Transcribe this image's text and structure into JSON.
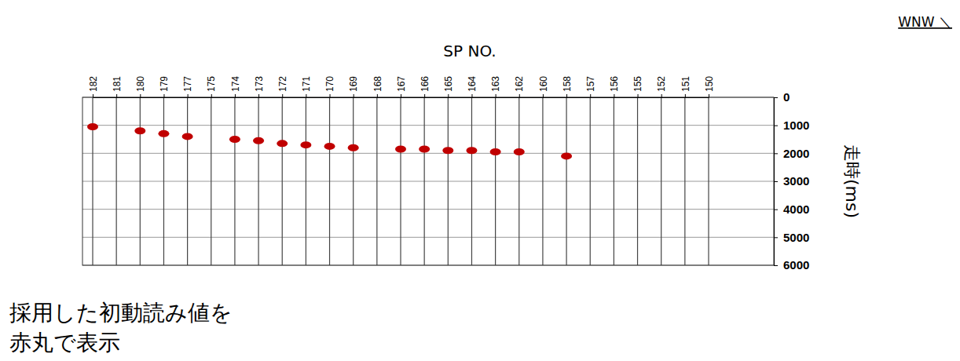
{
  "chart_data": {
    "type": "scatter",
    "x_label": "SP NO.",
    "y_label": "走時(ms)",
    "annotations": [
      "WNW ＼",
      "採用した初動読み値を",
      "赤丸で表示"
    ],
    "categories": [
      182,
      181,
      180,
      179,
      177,
      175,
      174,
      173,
      172,
      171,
      170,
      169,
      168,
      167,
      166,
      165,
      164,
      163,
      162,
      160,
      158,
      157,
      156,
      155,
      152,
      151,
      150
    ],
    "values": [
      1050,
      null,
      1200,
      1300,
      1400,
      null,
      1500,
      1550,
      1650,
      1700,
      1750,
      1800,
      null,
      1850,
      1850,
      1900,
      1900,
      1950,
      1950,
      null,
      2100,
      null,
      null,
      null,
      null,
      null,
      null
    ],
    "color": "#c00000",
    "marker": "ellipse",
    "ylim": [
      0,
      6000
    ],
    "yticks": [
      0,
      1000,
      2000,
      3000,
      4000,
      5000,
      6000
    ],
    "grid": true
  }
}
